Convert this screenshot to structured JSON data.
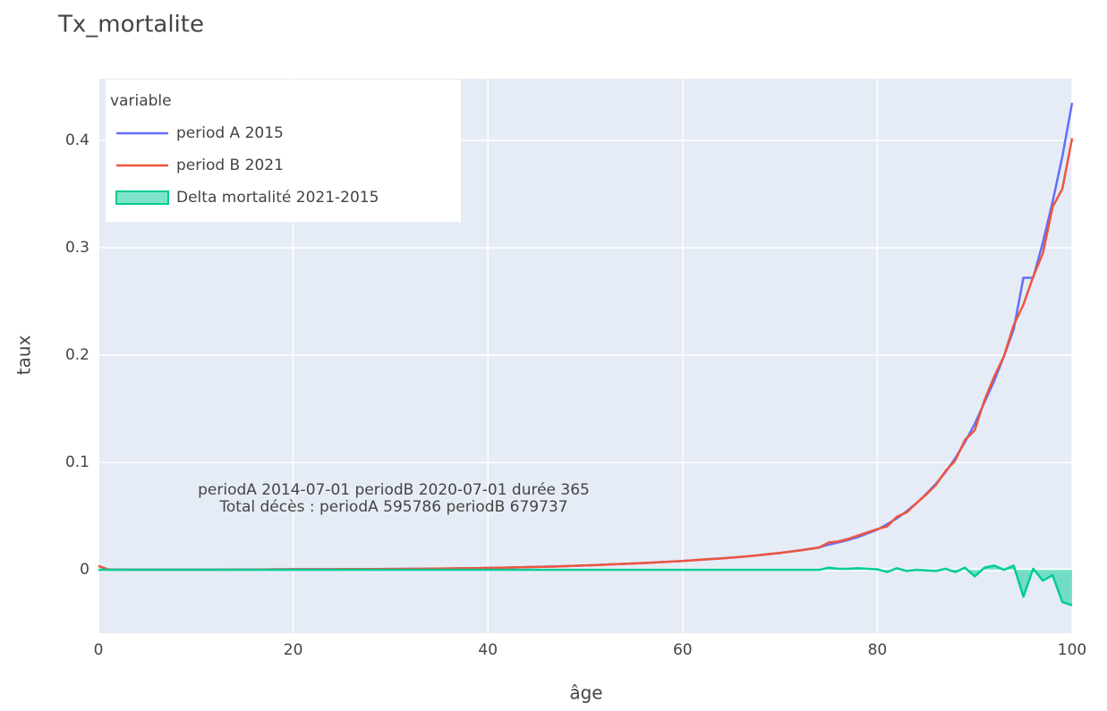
{
  "chart_data": {
    "type": "line",
    "title": "Tx_mortalite",
    "x_label": "âge",
    "y_label": "taux",
    "legend_title": "variable",
    "legend_position": "top-left",
    "grid": true,
    "xlim": [
      0,
      100
    ],
    "xticks": [
      0,
      20,
      40,
      60,
      80,
      100
    ],
    "ylim": [
      -0.059,
      0.4575
    ],
    "yticks": [
      0,
      0.1,
      0.2,
      0.3,
      0.4
    ],
    "annotation": [
      "periodA 2014-07-01 periodB 2020-07-01 durée 365",
      "Total décès : periodA 595786 periodB 679737"
    ],
    "x": [
      0,
      1,
      2,
      3,
      4,
      5,
      6,
      7,
      8,
      9,
      10,
      11,
      12,
      13,
      14,
      15,
      16,
      17,
      18,
      19,
      20,
      21,
      22,
      23,
      24,
      25,
      26,
      27,
      28,
      29,
      30,
      31,
      32,
      33,
      34,
      35,
      36,
      37,
      38,
      39,
      40,
      41,
      42,
      43,
      44,
      45,
      46,
      47,
      48,
      49,
      50,
      51,
      52,
      53,
      54,
      55,
      56,
      57,
      58,
      59,
      60,
      61,
      62,
      63,
      64,
      65,
      66,
      67,
      68,
      69,
      70,
      71,
      72,
      73,
      74,
      75,
      76,
      77,
      78,
      79,
      80,
      81,
      82,
      83,
      84,
      85,
      86,
      87,
      88,
      89,
      90,
      91,
      92,
      93,
      94,
      95,
      96,
      97,
      98,
      99,
      100
    ],
    "series": [
      {
        "name": "period A 2015",
        "color": "#636efa",
        "shape": "line",
        "values": [
          0.0036,
          0.0003,
          0.0002,
          0.0001,
          0.0001,
          0.0001,
          0.0001,
          0.0001,
          0.0001,
          0.0001,
          0.0001,
          0.0001,
          0.0001,
          0.0002,
          0.0002,
          0.0003,
          0.0003,
          0.0004,
          0.0005,
          0.0005,
          0.0006,
          0.0006,
          0.0006,
          0.0006,
          0.0006,
          0.0007,
          0.0007,
          0.0007,
          0.0008,
          0.0008,
          0.0009,
          0.0009,
          0.001,
          0.001,
          0.0011,
          0.0012,
          0.0013,
          0.0014,
          0.0015,
          0.0016,
          0.0018,
          0.0019,
          0.0021,
          0.0023,
          0.0025,
          0.0027,
          0.003,
          0.0032,
          0.0035,
          0.0038,
          0.0041,
          0.0044,
          0.0048,
          0.0052,
          0.0056,
          0.006,
          0.0064,
          0.0068,
          0.0073,
          0.0078,
          0.0083,
          0.0089,
          0.0095,
          0.0101,
          0.0107,
          0.0114,
          0.0121,
          0.0129,
          0.0138,
          0.0148,
          0.0158,
          0.0169,
          0.0181,
          0.0194,
          0.0208,
          0.0235,
          0.0255,
          0.0278,
          0.0305,
          0.034,
          0.0375,
          0.0425,
          0.048,
          0.0545,
          0.062,
          0.0705,
          0.08,
          0.091,
          0.104,
          0.119,
          0.136,
          0.156,
          0.176,
          0.199,
          0.224,
          0.272,
          0.272,
          0.305,
          0.343,
          0.385,
          0.435
        ]
      },
      {
        "name": "period B 2021",
        "color": "#ef553b",
        "shape": "line",
        "values": [
          0.0036,
          0.0003,
          0.0002,
          0.0001,
          0.0001,
          0.0001,
          0.0001,
          0.0001,
          0.0001,
          0.0001,
          0.0001,
          0.0001,
          0.0001,
          0.0002,
          0.0002,
          0.0003,
          0.0003,
          0.0004,
          0.0005,
          0.0005,
          0.0006,
          0.0006,
          0.0006,
          0.0006,
          0.0006,
          0.0007,
          0.0007,
          0.0007,
          0.0008,
          0.0008,
          0.0009,
          0.0009,
          0.001,
          0.001,
          0.0011,
          0.0012,
          0.0013,
          0.0014,
          0.0015,
          0.0016,
          0.0018,
          0.0019,
          0.0021,
          0.0023,
          0.0025,
          0.0027,
          0.003,
          0.0032,
          0.0035,
          0.0038,
          0.0041,
          0.0044,
          0.0048,
          0.0052,
          0.0056,
          0.006,
          0.0064,
          0.0068,
          0.0073,
          0.0078,
          0.0083,
          0.0089,
          0.0095,
          0.0101,
          0.0107,
          0.0114,
          0.0121,
          0.0129,
          0.0138,
          0.0148,
          0.0158,
          0.0169,
          0.0181,
          0.0194,
          0.0208,
          0.0255,
          0.0265,
          0.0288,
          0.032,
          0.035,
          0.038,
          0.0405,
          0.0495,
          0.0535,
          0.062,
          0.07,
          0.079,
          0.092,
          0.102,
          0.121,
          0.13,
          0.158,
          0.18,
          0.199,
          0.228,
          0.247,
          0.273,
          0.295,
          0.338,
          0.355,
          0.402
        ]
      },
      {
        "name": "Delta mortalité 2021-2015",
        "color": "#00cc96",
        "shape": "area",
        "values": [
          0,
          0,
          0,
          0,
          0,
          0,
          0,
          0,
          0,
          0,
          0,
          0,
          0,
          0,
          0,
          0,
          0,
          0,
          0,
          0,
          0,
          0,
          0,
          0,
          0,
          0,
          0,
          0,
          0,
          0,
          0,
          0,
          0,
          0,
          0,
          0,
          0,
          0,
          0,
          0,
          0,
          0,
          0,
          0,
          0,
          0,
          0,
          0,
          0,
          0,
          0,
          0,
          0,
          0,
          0,
          0,
          0,
          0,
          0,
          0,
          0,
          0,
          0,
          0,
          0,
          0,
          0,
          0,
          0,
          0,
          0,
          0,
          0,
          0,
          0,
          0.002,
          0.001,
          0.001,
          0.0015,
          0.001,
          0.0005,
          -0.002,
          0.0015,
          -0.001,
          0,
          -0.0005,
          -0.001,
          0.001,
          -0.002,
          0.002,
          -0.006,
          0.002,
          0.004,
          0,
          0.004,
          -0.025,
          0.001,
          -0.01,
          -0.005,
          -0.03,
          -0.033
        ]
      }
    ]
  }
}
